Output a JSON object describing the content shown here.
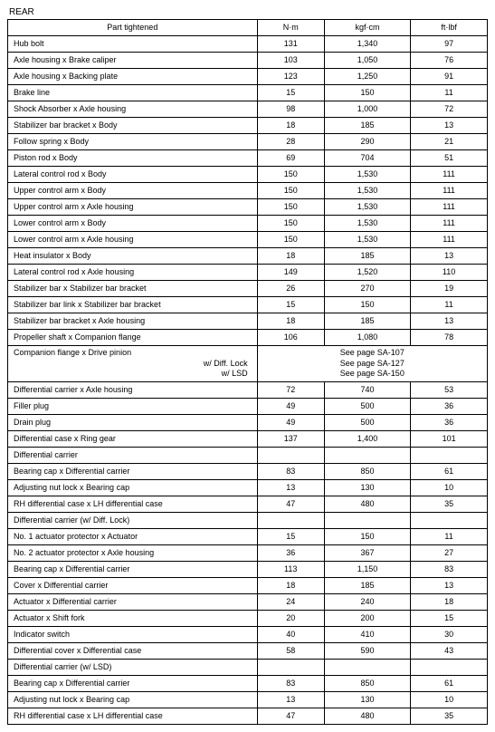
{
  "title": "REAR",
  "headers": [
    "Part tightened",
    "N·m",
    "kgf·cm",
    "ft·lbf"
  ],
  "rows": [
    {
      "type": "data",
      "part": "Hub bolt",
      "nm": "131",
      "kgf": "1,340",
      "ft": "97"
    },
    {
      "type": "data",
      "part": "Axle housing x Brake caliper",
      "nm": "103",
      "kgf": "1,050",
      "ft": "76"
    },
    {
      "type": "data",
      "part": "Axle housing x Backing plate",
      "nm": "123",
      "kgf": "1,250",
      "ft": "91"
    },
    {
      "type": "data",
      "part": "Brake line",
      "nm": "15",
      "kgf": "150",
      "ft": "11"
    },
    {
      "type": "data",
      "part": "Shock Absorber x Axle housing",
      "nm": "98",
      "kgf": "1,000",
      "ft": "72"
    },
    {
      "type": "data",
      "part": "Stabilizer bar bracket x Body",
      "nm": "18",
      "kgf": "185",
      "ft": "13"
    },
    {
      "type": "data",
      "part": "Follow spring x Body",
      "nm": "28",
      "kgf": "290",
      "ft": "21"
    },
    {
      "type": "data",
      "part": "Piston rod x Body",
      "nm": "69",
      "kgf": "704",
      "ft": "51"
    },
    {
      "type": "data",
      "part": "Lateral control rod x Body",
      "nm": "150",
      "kgf": "1,530",
      "ft": "111"
    },
    {
      "type": "data",
      "part": "Upper control arm x Body",
      "nm": "150",
      "kgf": "1,530",
      "ft": "111"
    },
    {
      "type": "data",
      "part": "Upper control arm x Axle housing",
      "nm": "150",
      "kgf": "1,530",
      "ft": "111"
    },
    {
      "type": "data",
      "part": "Lower control arm x Body",
      "nm": "150",
      "kgf": "1,530",
      "ft": "111"
    },
    {
      "type": "data",
      "part": "Lower control arm x Axle housing",
      "nm": "150",
      "kgf": "1,530",
      "ft": "111"
    },
    {
      "type": "data",
      "part": "Heat insulator x Body",
      "nm": "18",
      "kgf": "185",
      "ft": "13"
    },
    {
      "type": "data",
      "part": "Lateral control rod x Axle housing",
      "nm": "149",
      "kgf": "1,520",
      "ft": "110"
    },
    {
      "type": "data",
      "part": "Stabilizer bar x Stabilizer bar bracket",
      "nm": "26",
      "kgf": "270",
      "ft": "19"
    },
    {
      "type": "data",
      "part": "Stabilizer bar link x Stabilizer bar bracket",
      "nm": "15",
      "kgf": "150",
      "ft": "11"
    },
    {
      "type": "data",
      "part": "Stabilizer bar bracket x Axle housing",
      "nm": "18",
      "kgf": "185",
      "ft": "13"
    },
    {
      "type": "data",
      "part": "Propeller shaft x Companion flange",
      "nm": "106",
      "kgf": "1,080",
      "ft": "78"
    },
    {
      "type": "see",
      "part": "Companion flange x Drive pinion",
      "sub": [
        "w/ Diff. Lock",
        "w/ LSD"
      ],
      "refs": [
        "See page SA-107",
        "See page SA-127",
        "See page SA-150"
      ]
    },
    {
      "type": "data",
      "part": "Differential carrier x Axle housing",
      "nm": "72",
      "kgf": "740",
      "ft": "53"
    },
    {
      "type": "data",
      "part": "Filler plug",
      "nm": "49",
      "kgf": "500",
      "ft": "36"
    },
    {
      "type": "data",
      "part": "Drain plug",
      "nm": "49",
      "kgf": "500",
      "ft": "36"
    },
    {
      "type": "data",
      "part": "Differential case x Ring gear",
      "nm": "137",
      "kgf": "1,400",
      "ft": "101"
    },
    {
      "type": "section",
      "part": "Differential carrier"
    },
    {
      "type": "data",
      "part": "Bearing cap x Differential carrier",
      "nm": "83",
      "kgf": "850",
      "ft": "61"
    },
    {
      "type": "data",
      "part": "Adjusting nut lock x Bearing cap",
      "nm": "13",
      "kgf": "130",
      "ft": "10"
    },
    {
      "type": "data",
      "part": "RH differential case x LH differential case",
      "nm": "47",
      "kgf": "480",
      "ft": "35"
    },
    {
      "type": "section",
      "part": "Differential carrier (w/ Diff. Lock)"
    },
    {
      "type": "data",
      "part": "No. 1 actuator protector x Actuator",
      "nm": "15",
      "kgf": "150",
      "ft": "11"
    },
    {
      "type": "data",
      "part": "No. 2 actuator protector x Axle housing",
      "nm": "36",
      "kgf": "367",
      "ft": "27"
    },
    {
      "type": "data",
      "part": "Bearing cap x Differential carrier",
      "nm": "113",
      "kgf": "1,150",
      "ft": "83"
    },
    {
      "type": "data",
      "part": "Cover x Differential carrier",
      "nm": "18",
      "kgf": "185",
      "ft": "13"
    },
    {
      "type": "data",
      "part": "Actuator x Differential carrier",
      "nm": "24",
      "kgf": "240",
      "ft": "18"
    },
    {
      "type": "data",
      "part": "Actuator x Shift fork",
      "nm": "20",
      "kgf": "200",
      "ft": "15"
    },
    {
      "type": "data",
      "part": "Indicator switch",
      "nm": "40",
      "kgf": "410",
      "ft": "30"
    },
    {
      "type": "data",
      "part": "Differential cover x Differential case",
      "nm": "58",
      "kgf": "590",
      "ft": "43"
    },
    {
      "type": "section",
      "part": "Differential carrier (w/ LSD)"
    },
    {
      "type": "data",
      "part": "Bearing cap x Differential carrier",
      "nm": "83",
      "kgf": "850",
      "ft": "61"
    },
    {
      "type": "data",
      "part": "Adjusting nut lock x Bearing cap",
      "nm": "13",
      "kgf": "130",
      "ft": "10"
    },
    {
      "type": "data",
      "part": "RH differential case x LH differential case",
      "nm": "47",
      "kgf": "480",
      "ft": "35"
    }
  ]
}
